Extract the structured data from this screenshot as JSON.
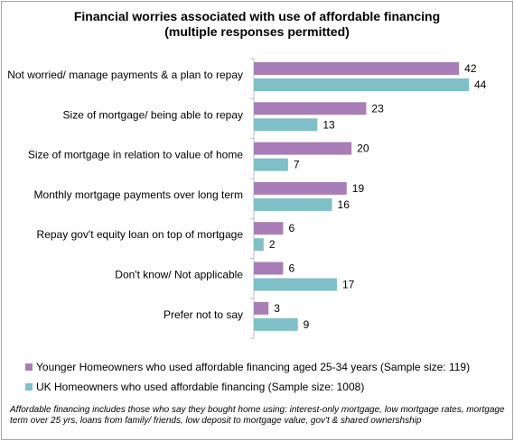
{
  "chart_data": {
    "type": "bar",
    "orientation": "horizontal",
    "title": "Financial worries associated with use of affordable financing",
    "subtitle": "(multiple responses permitted)",
    "categories": [
      "Not worried/ manage payments & a plan to repay",
      "Size of mortgage/ being able to repay",
      "Size of mortgage in relation to value of home",
      "Monthly mortgage payments over long term",
      "Repay gov't equity loan on top of mortgage",
      "Don't know/ Not applicable",
      "Prefer not to say"
    ],
    "series": [
      {
        "name": "Younger Homeowners who used affordable financing aged 25-34 years (Sample size: 119)",
        "color": "#a97db7",
        "values": [
          42,
          23,
          20,
          19,
          6,
          6,
          3
        ]
      },
      {
        "name": "UK Homeowners who used affordable financing (Sample size: 1008)",
        "color": "#7fbfc8",
        "values": [
          44,
          13,
          7,
          16,
          2,
          17,
          9
        ]
      }
    ],
    "xlim": [
      0,
      50
    ],
    "grid": false,
    "legend_position": "bottom",
    "data_labels": true
  },
  "footnote": "Affordable financing includes those who say they bought home using: interest-only mortgage, low mortgage rates, mortgage term over 25 yrs, loans from family/ friends, low deposit to mortgage value, gov't & shared ownershship"
}
